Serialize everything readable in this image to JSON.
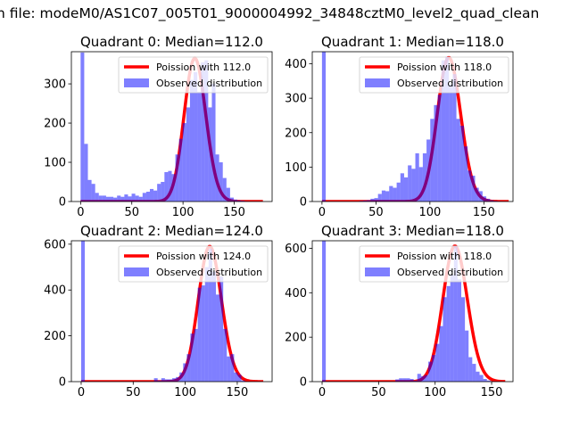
{
  "figure_title": "n file: modeM0/AS1C07_005T01_9000004992_34848cztM0_level2_quad_clean",
  "colors": {
    "bars": "#0000ff",
    "line": "#ff0000"
  },
  "chart_data": [
    {
      "type": "bar",
      "title": "Quadrant 0: Median=112.0",
      "legend": {
        "line_label": "Poission with 112.0",
        "bar_label": "Observed distribution",
        "placement": "upper right"
      },
      "bin_width": 3.56,
      "values": [
        380,
        147,
        55,
        45,
        22,
        15,
        15,
        12,
        12,
        10,
        15,
        12,
        18,
        13,
        20,
        15,
        12,
        22,
        25,
        32,
        28,
        45,
        50,
        75,
        78,
        70,
        120,
        160,
        200,
        240,
        310,
        330,
        280,
        355,
        360,
        240,
        300,
        120,
        100,
        60,
        35,
        10,
        5,
        3,
        2,
        1,
        0,
        0,
        0,
        0
      ],
      "poisson": {
        "mu": 112,
        "peak": 365,
        "xmax": 178
      },
      "xlim": [
        -9,
        187
      ],
      "ylim": [
        0,
        382
      ],
      "xticks": [
        "0",
        "50",
        "100",
        "150"
      ],
      "yticks": [
        "0",
        "100",
        "200",
        "300"
      ]
    },
    {
      "type": "bar",
      "title": "Quadrant 1: Median=118.0",
      "legend": {
        "line_label": "Poission with 118.0",
        "bar_label": "Observed distribution",
        "placement": "upper right"
      },
      "bin_width": 3.46,
      "values": [
        440,
        0,
        0,
        0,
        0,
        0,
        0,
        0,
        0,
        0,
        2,
        3,
        4,
        8,
        10,
        22,
        32,
        30,
        45,
        40,
        55,
        82,
        70,
        105,
        95,
        140,
        100,
        140,
        180,
        240,
        280,
        310,
        410,
        420,
        340,
        370,
        240,
        220,
        160,
        90,
        75,
        40,
        30,
        15,
        8,
        4,
        2,
        1,
        0,
        0
      ],
      "poisson": {
        "mu": 118,
        "peak": 418,
        "xmax": 173
      },
      "xlim": [
        -9,
        177
      ],
      "ylim": [
        0,
        435
      ],
      "xticks": [
        "0",
        "50",
        "100",
        "150"
      ],
      "yticks": [
        "0",
        "100",
        "200",
        "300",
        "400"
      ]
    },
    {
      "type": "bar",
      "title": "Quadrant 2: Median=124.0",
      "legend": {
        "line_label": "Poission with 124.0",
        "bar_label": "Observed distribution",
        "placement": "upper right"
      },
      "bin_width": 3.5,
      "values": [
        620,
        0,
        0,
        0,
        0,
        0,
        0,
        0,
        0,
        0,
        0,
        0,
        0,
        0,
        0,
        0,
        0,
        0,
        0,
        0,
        15,
        5,
        15,
        10,
        10,
        15,
        20,
        40,
        80,
        120,
        210,
        230,
        410,
        420,
        500,
        580,
        480,
        380,
        460,
        230,
        110,
        120,
        40,
        30,
        5,
        0,
        0,
        0,
        0,
        0
      ],
      "poisson": {
        "mu": 124,
        "peak": 590,
        "xmax": 175
      },
      "xlim": [
        -9.4,
        183.5
      ],
      "ylim": [
        0,
        615
      ],
      "xticks": [
        "0",
        "50",
        "100",
        "150"
      ],
      "yticks": [
        "0",
        "200",
        "400",
        "600"
      ]
    },
    {
      "type": "bar",
      "title": "Quadrant 3: Median=118.0",
      "legend": {
        "line_label": "Poission with 118.0",
        "bar_label": "Observed distribution",
        "placement": "upper right"
      },
      "bin_width": 3.24,
      "values": [
        640,
        0,
        0,
        0,
        0,
        0,
        0,
        0,
        0,
        0,
        0,
        0,
        0,
        0,
        0,
        0,
        0,
        0,
        0,
        0,
        10,
        15,
        15,
        15,
        12,
        5,
        35,
        25,
        30,
        90,
        120,
        170,
        250,
        380,
        430,
        480,
        610,
        460,
        380,
        230,
        110,
        80,
        45,
        30,
        12,
        5,
        2,
        1,
        0,
        0
      ],
      "poisson": {
        "mu": 118,
        "peak": 610,
        "xmax": 162
      },
      "xlim": [
        -8.7,
        168.9
      ],
      "ylim": [
        0,
        634
      ],
      "xticks": [
        "0",
        "50",
        "100",
        "150"
      ],
      "yticks": [
        "0",
        "200",
        "400",
        "600"
      ]
    }
  ]
}
